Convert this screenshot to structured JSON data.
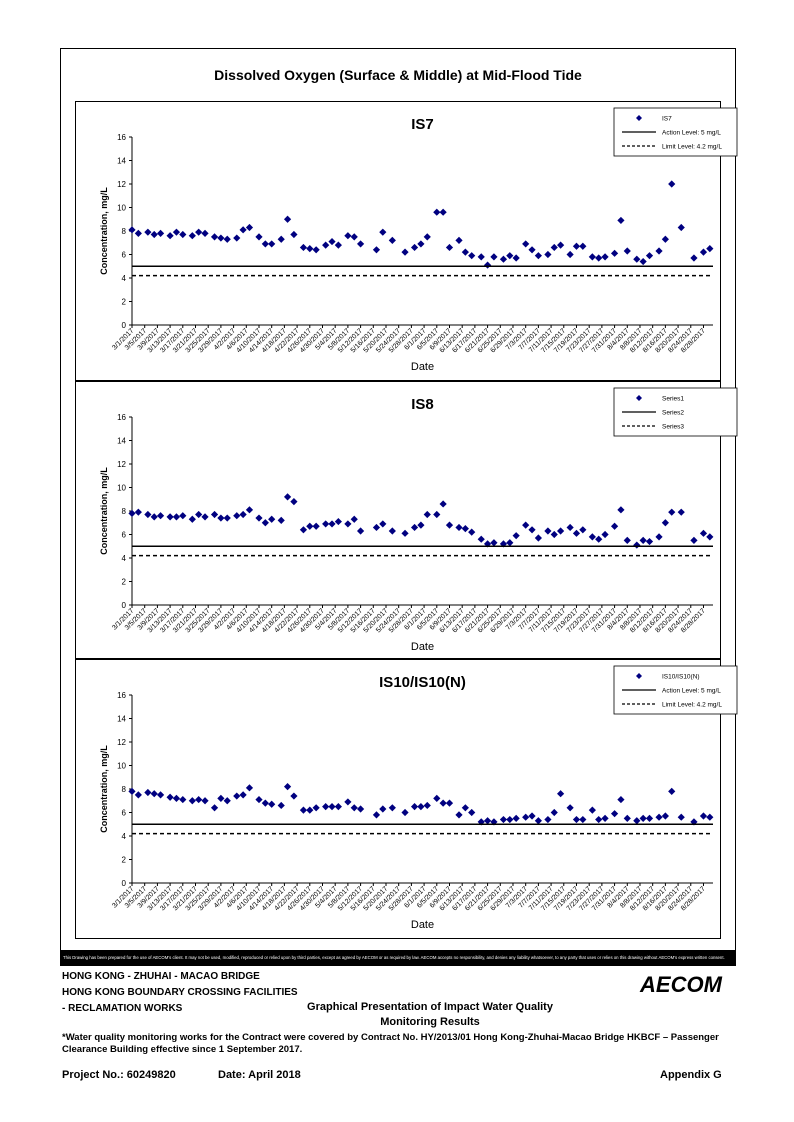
{
  "main_title": "Dissolved Oxygen (Surface & Middle) at Mid-Flood Tide",
  "disclaimer": "This Drawing has been prepared for the use of AECOM's client. It may not be used, modified, reproduced or relied upon by third parties, except as agreed by AECOM or as required by law. AECOM accepts no responsibility, and denies any liability whatsoever, to any party that uses or relies on this drawing without AECOM's express written consent.",
  "project_lines": [
    "HONG KONG - ZHUHAI - MACAO BRIDGE",
    "HONG KONG BOUNDARY CROSSING FACILITIES",
    "- RECLAMATION WORKS"
  ],
  "logo_text": "AECOM",
  "report_title_lines": [
    "Graphical Presentation of Impact Water Quality",
    "Monitoring Results"
  ],
  "footnote": "*Water quality monitoring works for the Contract were covered by Contract No. HY/2013/01 Hong Kong-Zhuhai-Macao Bridge HKBCF – Passenger Clearance Building effective since 1 September 2017.",
  "project_no": "Project No.: 60249820",
  "date": "Date: April 2018",
  "appendix": "Appendix G",
  "colors": {
    "marker": "#000080",
    "line": "#000000"
  },
  "chart_data": [
    {
      "type": "scatter",
      "title": "IS7",
      "xlabel": "Date",
      "ylabel": "Concentration, mg/L",
      "ylim": [
        0,
        16
      ],
      "yticks": [
        0,
        2,
        4,
        6,
        8,
        10,
        12,
        14,
        16
      ],
      "x_range": [
        "3/1/2017",
        "8/31/2017"
      ],
      "x_ticks": [
        "3/1/2017",
        "3/5/2017",
        "3/9/2017",
        "3/13/2017",
        "3/17/2017",
        "3/21/2017",
        "3/25/2017",
        "3/29/2017",
        "4/2/2017",
        "4/6/2017",
        "4/10/2017",
        "4/14/2017",
        "4/18/2017",
        "4/22/2017",
        "4/26/2017",
        "4/30/2017",
        "5/4/2017",
        "5/8/2017",
        "5/12/2017",
        "5/16/2017",
        "5/20/2017",
        "5/24/2017",
        "5/28/2017",
        "6/1/2017",
        "6/5/2017",
        "6/9/2017",
        "6/13/2017",
        "6/17/2017",
        "6/21/2017",
        "6/25/2017",
        "6/29/2017",
        "7/3/2017",
        "7/7/2017",
        "7/11/2017",
        "7/15/2017",
        "7/19/2017",
        "7/23/2017",
        "7/27/2017",
        "7/31/2017",
        "8/4/2017",
        "8/8/2017",
        "8/12/2017",
        "8/16/2017",
        "8/20/2017",
        "8/24/2017",
        "8/28/2017"
      ],
      "legend_position": "top-right",
      "series": [
        {
          "name": "IS7",
          "kind": "scatter",
          "x": [
            "3/1/2017",
            "3/3/2017",
            "3/6/2017",
            "3/8/2017",
            "3/10/2017",
            "3/13/2017",
            "3/15/2017",
            "3/17/2017",
            "3/20/2017",
            "3/22/2017",
            "3/24/2017",
            "3/27/2017",
            "3/29/2017",
            "3/31/2017",
            "4/3/2017",
            "4/5/2017",
            "4/7/2017",
            "4/10/2017",
            "4/12/2017",
            "4/14/2017",
            "4/17/2017",
            "4/19/2017",
            "4/21/2017",
            "4/24/2017",
            "4/26/2017",
            "4/28/2017",
            "5/1/2017",
            "5/3/2017",
            "5/5/2017",
            "5/8/2017",
            "5/10/2017",
            "5/12/2017",
            "5/17/2017",
            "5/19/2017",
            "5/22/2017",
            "5/26/2017",
            "5/29/2017",
            "5/31/2017",
            "6/2/2017",
            "6/5/2017",
            "6/7/2017",
            "6/9/2017",
            "6/12/2017",
            "6/14/2017",
            "6/16/2017",
            "6/19/2017",
            "6/21/2017",
            "6/23/2017",
            "6/26/2017",
            "6/28/2017",
            "6/30/2017",
            "7/3/2017",
            "7/5/2017",
            "7/7/2017",
            "7/10/2017",
            "7/12/2017",
            "7/14/2017",
            "7/17/2017",
            "7/19/2017",
            "7/21/2017",
            "7/24/2017",
            "7/26/2017",
            "7/28/2017",
            "7/31/2017",
            "8/2/2017",
            "8/4/2017",
            "8/7/2017",
            "8/9/2017",
            "8/11/2017",
            "8/14/2017",
            "8/16/2017",
            "8/18/2017",
            "8/21/2017",
            "8/25/2017",
            "8/28/2017",
            "8/30/2017"
          ],
          "y": [
            8.1,
            7.8,
            7.9,
            7.7,
            7.8,
            7.6,
            7.9,
            7.7,
            7.6,
            7.9,
            7.8,
            7.5,
            7.4,
            7.3,
            7.4,
            8.1,
            8.3,
            7.5,
            6.9,
            6.9,
            7.3,
            9.0,
            7.7,
            6.6,
            6.5,
            6.4,
            6.8,
            7.1,
            6.8,
            7.6,
            7.5,
            6.9,
            6.4,
            7.9,
            7.2,
            6.2,
            6.6,
            6.9,
            7.5,
            9.6,
            9.6,
            6.6,
            7.2,
            6.2,
            5.9,
            5.8,
            5.1,
            5.8,
            5.6,
            5.9,
            5.7,
            6.9,
            6.4,
            5.9,
            6.0,
            6.6,
            6.8,
            6.0,
            6.7,
            6.7,
            5.8,
            5.7,
            5.8,
            6.1,
            8.9,
            6.3,
            5.6,
            5.4,
            5.9,
            6.3,
            7.3,
            12.0,
            8.3,
            5.7,
            6.2,
            6.5
          ]
        },
        {
          "name": "Action Level: 5 mg/L",
          "kind": "line",
          "y": 5
        },
        {
          "name": "Limit Level: 4.2 mg/L",
          "kind": "dashed",
          "y": 4.2
        }
      ]
    },
    {
      "type": "scatter",
      "title": "IS8",
      "xlabel": "Date",
      "ylabel": "Concentration, mg/L",
      "ylim": [
        0,
        16
      ],
      "yticks": [
        0,
        2,
        4,
        6,
        8,
        10,
        12,
        14,
        16
      ],
      "x_range": [
        "3/1/2017",
        "8/31/2017"
      ],
      "x_ticks": [
        "3/1/2017",
        "3/5/2017",
        "3/9/2017",
        "3/13/2017",
        "3/17/2017",
        "3/21/2017",
        "3/25/2017",
        "3/29/2017",
        "4/2/2017",
        "4/6/2017",
        "4/10/2017",
        "4/14/2017",
        "4/18/2017",
        "4/22/2017",
        "4/26/2017",
        "4/30/2017",
        "5/4/2017",
        "5/8/2017",
        "5/12/2017",
        "5/16/2017",
        "5/20/2017",
        "5/24/2017",
        "5/28/2017",
        "6/1/2017",
        "6/5/2017",
        "6/9/2017",
        "6/13/2017",
        "6/17/2017",
        "6/21/2017",
        "6/25/2017",
        "6/29/2017",
        "7/3/2017",
        "7/7/2017",
        "7/11/2017",
        "7/15/2017",
        "7/19/2017",
        "7/23/2017",
        "7/27/2017",
        "7/31/2017",
        "8/4/2017",
        "8/8/2017",
        "8/12/2017",
        "8/16/2017",
        "8/20/2017",
        "8/24/2017",
        "8/28/2017"
      ],
      "legend_position": "top-right",
      "series": [
        {
          "name": "Series1",
          "kind": "scatter",
          "x": [
            "3/1/2017",
            "3/3/2017",
            "3/6/2017",
            "3/8/2017",
            "3/10/2017",
            "3/13/2017",
            "3/15/2017",
            "3/17/2017",
            "3/20/2017",
            "3/22/2017",
            "3/24/2017",
            "3/27/2017",
            "3/29/2017",
            "3/31/2017",
            "4/3/2017",
            "4/5/2017",
            "4/7/2017",
            "4/10/2017",
            "4/12/2017",
            "4/14/2017",
            "4/17/2017",
            "4/19/2017",
            "4/21/2017",
            "4/24/2017",
            "4/26/2017",
            "4/28/2017",
            "5/1/2017",
            "5/3/2017",
            "5/5/2017",
            "5/8/2017",
            "5/10/2017",
            "5/12/2017",
            "5/17/2017",
            "5/19/2017",
            "5/22/2017",
            "5/26/2017",
            "5/29/2017",
            "5/31/2017",
            "6/2/2017",
            "6/5/2017",
            "6/7/2017",
            "6/9/2017",
            "6/12/2017",
            "6/14/2017",
            "6/16/2017",
            "6/19/2017",
            "6/21/2017",
            "6/23/2017",
            "6/26/2017",
            "6/28/2017",
            "6/30/2017",
            "7/3/2017",
            "7/5/2017",
            "7/7/2017",
            "7/10/2017",
            "7/12/2017",
            "7/14/2017",
            "7/17/2017",
            "7/19/2017",
            "7/21/2017",
            "7/24/2017",
            "7/26/2017",
            "7/28/2017",
            "7/31/2017",
            "8/2/2017",
            "8/4/2017",
            "8/7/2017",
            "8/9/2017",
            "8/11/2017",
            "8/14/2017",
            "8/16/2017",
            "8/18/2017",
            "8/21/2017",
            "8/25/2017",
            "8/28/2017",
            "8/30/2017"
          ],
          "y": [
            7.8,
            7.9,
            7.7,
            7.5,
            7.6,
            7.5,
            7.5,
            7.6,
            7.3,
            7.7,
            7.5,
            7.7,
            7.4,
            7.4,
            7.6,
            7.7,
            8.1,
            7.4,
            7.0,
            7.3,
            7.2,
            9.2,
            8.8,
            6.4,
            6.7,
            6.7,
            6.9,
            6.9,
            7.1,
            6.9,
            7.3,
            6.3,
            6.6,
            6.9,
            6.3,
            6.1,
            6.6,
            6.8,
            7.7,
            7.7,
            8.6,
            6.8,
            6.6,
            6.5,
            6.2,
            5.6,
            5.2,
            5.3,
            5.2,
            5.3,
            5.9,
            6.8,
            6.4,
            5.7,
            6.3,
            6.0,
            6.3,
            6.6,
            6.1,
            6.4,
            5.8,
            5.6,
            6.0,
            6.7,
            8.1,
            5.5,
            5.1,
            5.5,
            5.4,
            5.8,
            7.0,
            7.9,
            7.9,
            5.5,
            6.1,
            5.8
          ]
        },
        {
          "name": "Series2",
          "kind": "line",
          "y": 5
        },
        {
          "name": "Series3",
          "kind": "dashed",
          "y": 4.2
        }
      ]
    },
    {
      "type": "scatter",
      "title": "IS10/IS10(N)",
      "xlabel": "Date",
      "ylabel": "Concentration, mg/L",
      "ylim": [
        0,
        16
      ],
      "yticks": [
        0,
        2,
        4,
        6,
        8,
        10,
        12,
        14,
        16
      ],
      "x_range": [
        "3/1/2017",
        "8/31/2017"
      ],
      "x_ticks": [
        "3/1/2017",
        "3/5/2017",
        "3/9/2017",
        "3/13/2017",
        "3/17/2017",
        "3/21/2017",
        "3/25/2017",
        "3/29/2017",
        "4/2/2017",
        "4/6/2017",
        "4/10/2017",
        "4/14/2017",
        "4/18/2017",
        "4/22/2017",
        "4/26/2017",
        "4/30/2017",
        "5/4/2017",
        "5/8/2017",
        "5/12/2017",
        "5/16/2017",
        "5/20/2017",
        "5/24/2017",
        "5/28/2017",
        "6/1/2017",
        "6/5/2017",
        "6/9/2017",
        "6/13/2017",
        "6/17/2017",
        "6/21/2017",
        "6/25/2017",
        "6/29/2017",
        "7/3/2017",
        "7/7/2017",
        "7/11/2017",
        "7/15/2017",
        "7/19/2017",
        "7/23/2017",
        "7/27/2017",
        "7/31/2017",
        "8/4/2017",
        "8/8/2017",
        "8/12/2017",
        "8/16/2017",
        "8/20/2017",
        "8/24/2017",
        "8/28/2017"
      ],
      "legend_position": "top-right",
      "series": [
        {
          "name": "IS10/IS10(N)",
          "kind": "scatter",
          "x": [
            "3/1/2017",
            "3/3/2017",
            "3/6/2017",
            "3/8/2017",
            "3/10/2017",
            "3/13/2017",
            "3/15/2017",
            "3/17/2017",
            "3/20/2017",
            "3/22/2017",
            "3/24/2017",
            "3/27/2017",
            "3/29/2017",
            "3/31/2017",
            "4/3/2017",
            "4/5/2017",
            "4/7/2017",
            "4/10/2017",
            "4/12/2017",
            "4/14/2017",
            "4/17/2017",
            "4/19/2017",
            "4/21/2017",
            "4/24/2017",
            "4/26/2017",
            "4/28/2017",
            "5/1/2017",
            "5/3/2017",
            "5/5/2017",
            "5/8/2017",
            "5/10/2017",
            "5/12/2017",
            "5/17/2017",
            "5/19/2017",
            "5/22/2017",
            "5/26/2017",
            "5/29/2017",
            "5/31/2017",
            "6/2/2017",
            "6/5/2017",
            "6/7/2017",
            "6/9/2017",
            "6/12/2017",
            "6/14/2017",
            "6/16/2017",
            "6/19/2017",
            "6/21/2017",
            "6/23/2017",
            "6/26/2017",
            "6/28/2017",
            "6/30/2017",
            "7/3/2017",
            "7/5/2017",
            "7/7/2017",
            "7/10/2017",
            "7/12/2017",
            "7/14/2017",
            "7/17/2017",
            "7/19/2017",
            "7/21/2017",
            "7/24/2017",
            "7/26/2017",
            "7/28/2017",
            "7/31/2017",
            "8/2/2017",
            "8/4/2017",
            "8/7/2017",
            "8/9/2017",
            "8/11/2017",
            "8/14/2017",
            "8/16/2017",
            "8/18/2017",
            "8/21/2017",
            "8/25/2017",
            "8/28/2017",
            "8/30/2017"
          ],
          "y": [
            7.8,
            7.5,
            7.7,
            7.6,
            7.5,
            7.3,
            7.2,
            7.1,
            7.0,
            7.1,
            7.0,
            6.4,
            7.2,
            7.0,
            7.4,
            7.5,
            8.1,
            7.1,
            6.8,
            6.7,
            6.6,
            8.2,
            7.4,
            6.2,
            6.2,
            6.4,
            6.5,
            6.5,
            6.5,
            6.9,
            6.4,
            6.3,
            5.8,
            6.3,
            6.4,
            6.0,
            6.5,
            6.5,
            6.6,
            7.2,
            6.8,
            6.8,
            5.8,
            6.4,
            6.0,
            5.2,
            5.3,
            5.2,
            5.4,
            5.4,
            5.5,
            5.6,
            5.7,
            5.3,
            5.4,
            6.0,
            7.6,
            6.4,
            5.4,
            5.4,
            6.2,
            5.4,
            5.5,
            5.9,
            7.1,
            5.5,
            5.3,
            5.5,
            5.5,
            5.6,
            5.7,
            7.8,
            5.6,
            5.2,
            5.7,
            5.6
          ]
        },
        {
          "name": "Action Level: 5 mg/L",
          "kind": "line",
          "y": 5
        },
        {
          "name": "Limit Level: 4.2 mg/L",
          "kind": "dashed",
          "y": 4.2
        }
      ]
    }
  ]
}
